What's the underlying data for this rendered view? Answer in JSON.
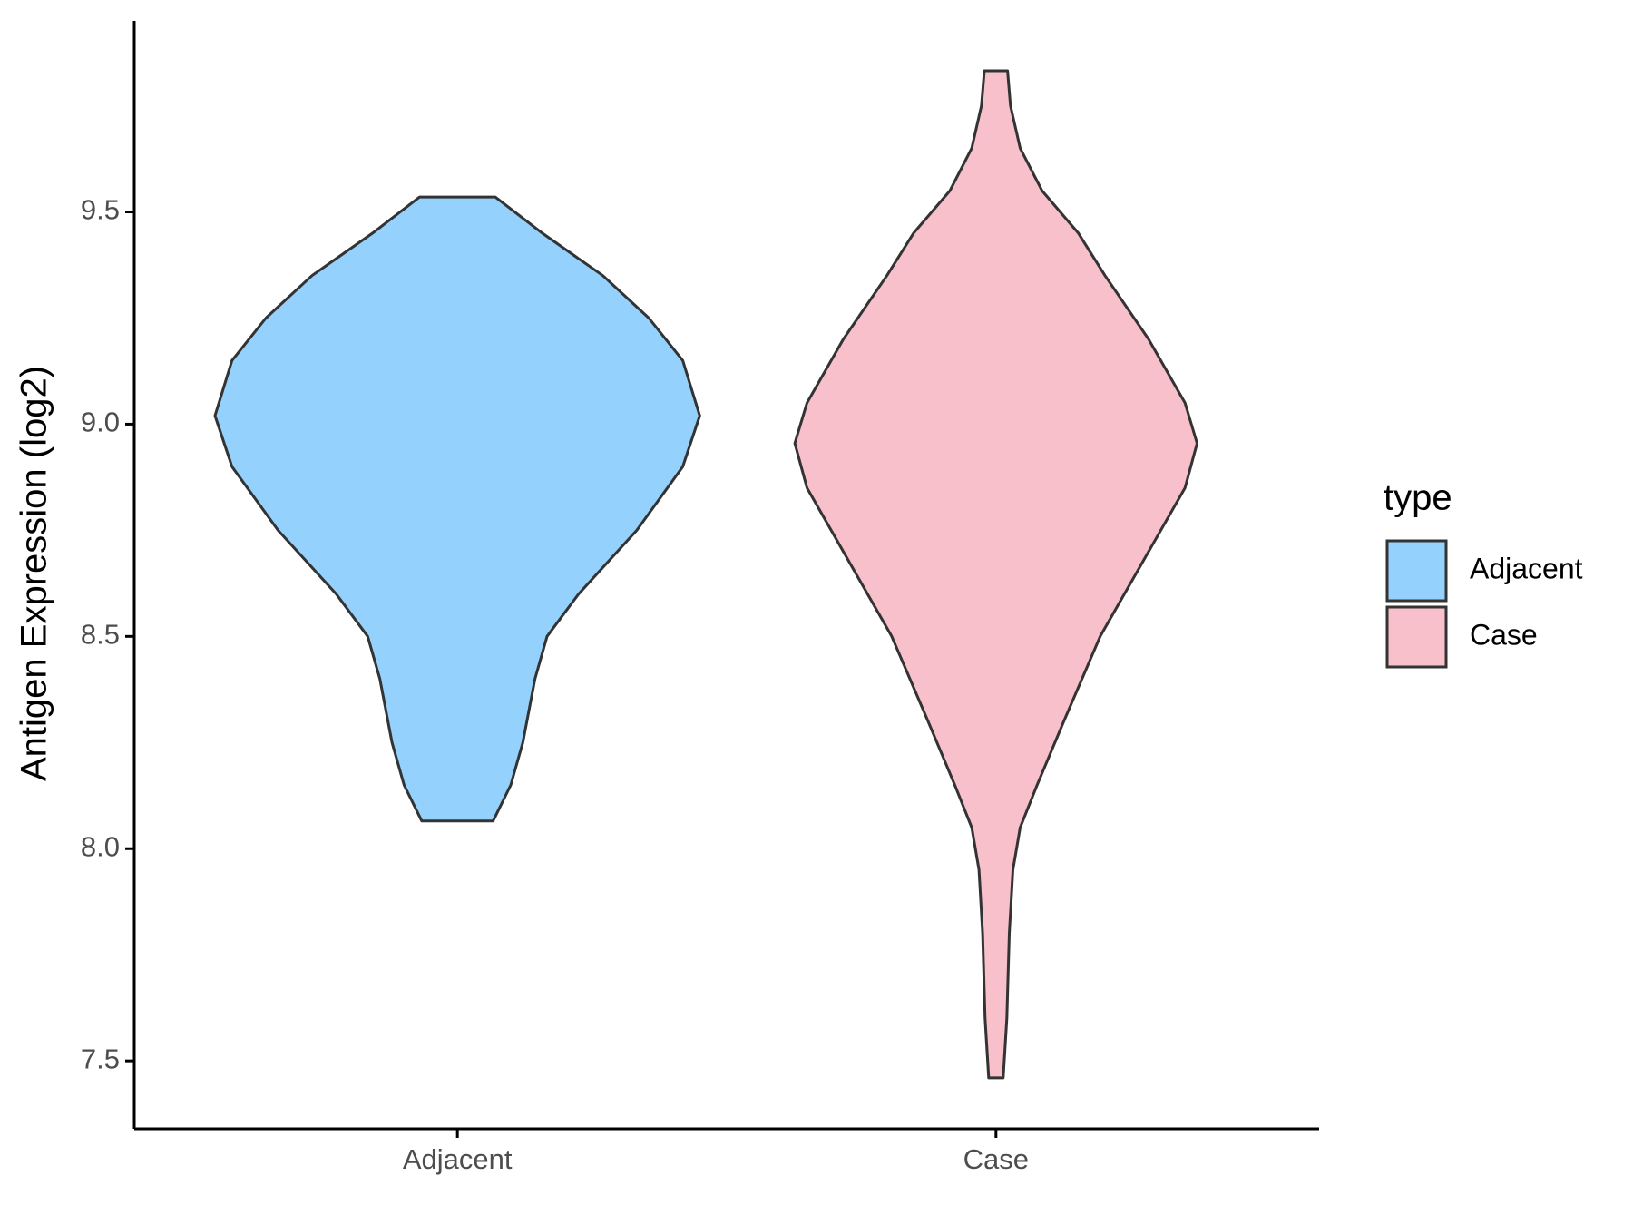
{
  "chart_data": {
    "type": "violin",
    "y_label": "Antigen Expression (log2)",
    "legend_title": "type",
    "categories": [
      "Adjacent",
      "Case"
    ],
    "ylim": [
      7.34,
      9.95
    ],
    "yticks": [
      {
        "value": 7.5,
        "label": "7.5"
      },
      {
        "value": 8,
        "label": "8.0"
      },
      8.5,
      {
        "value": 9,
        "label": "9.0"
      },
      9.5
    ],
    "series": [
      {
        "name": "Adjacent",
        "color": "#94d2fd",
        "y": [
          9.535,
          9.45,
          9.35,
          9.25,
          9.15,
          9.02,
          8.9,
          8.75,
          8.6,
          8.5,
          8.4,
          8.25,
          8.15,
          8.065
        ],
        "density": [
          0.156,
          0.35,
          0.6,
          0.79,
          0.93,
          1.0,
          0.93,
          0.74,
          0.5,
          0.37,
          0.32,
          0.27,
          0.22,
          0.147
        ]
      },
      {
        "name": "Case",
        "color": "#f7c0cb",
        "y": [
          9.8325,
          9.75,
          9.65,
          9.55,
          9.45,
          9.35,
          9.2,
          9.05,
          8.955,
          8.85,
          8.7,
          8.5,
          8.3,
          8.15,
          8.05,
          7.95,
          7.8,
          7.6,
          7.46
        ],
        "density": [
          0.048,
          0.06,
          0.1,
          0.19,
          0.34,
          0.45,
          0.63,
          0.78,
          0.83,
          0.78,
          0.63,
          0.43,
          0.28,
          0.17,
          0.1,
          0.07,
          0.055,
          0.045,
          0.03
        ]
      }
    ]
  }
}
